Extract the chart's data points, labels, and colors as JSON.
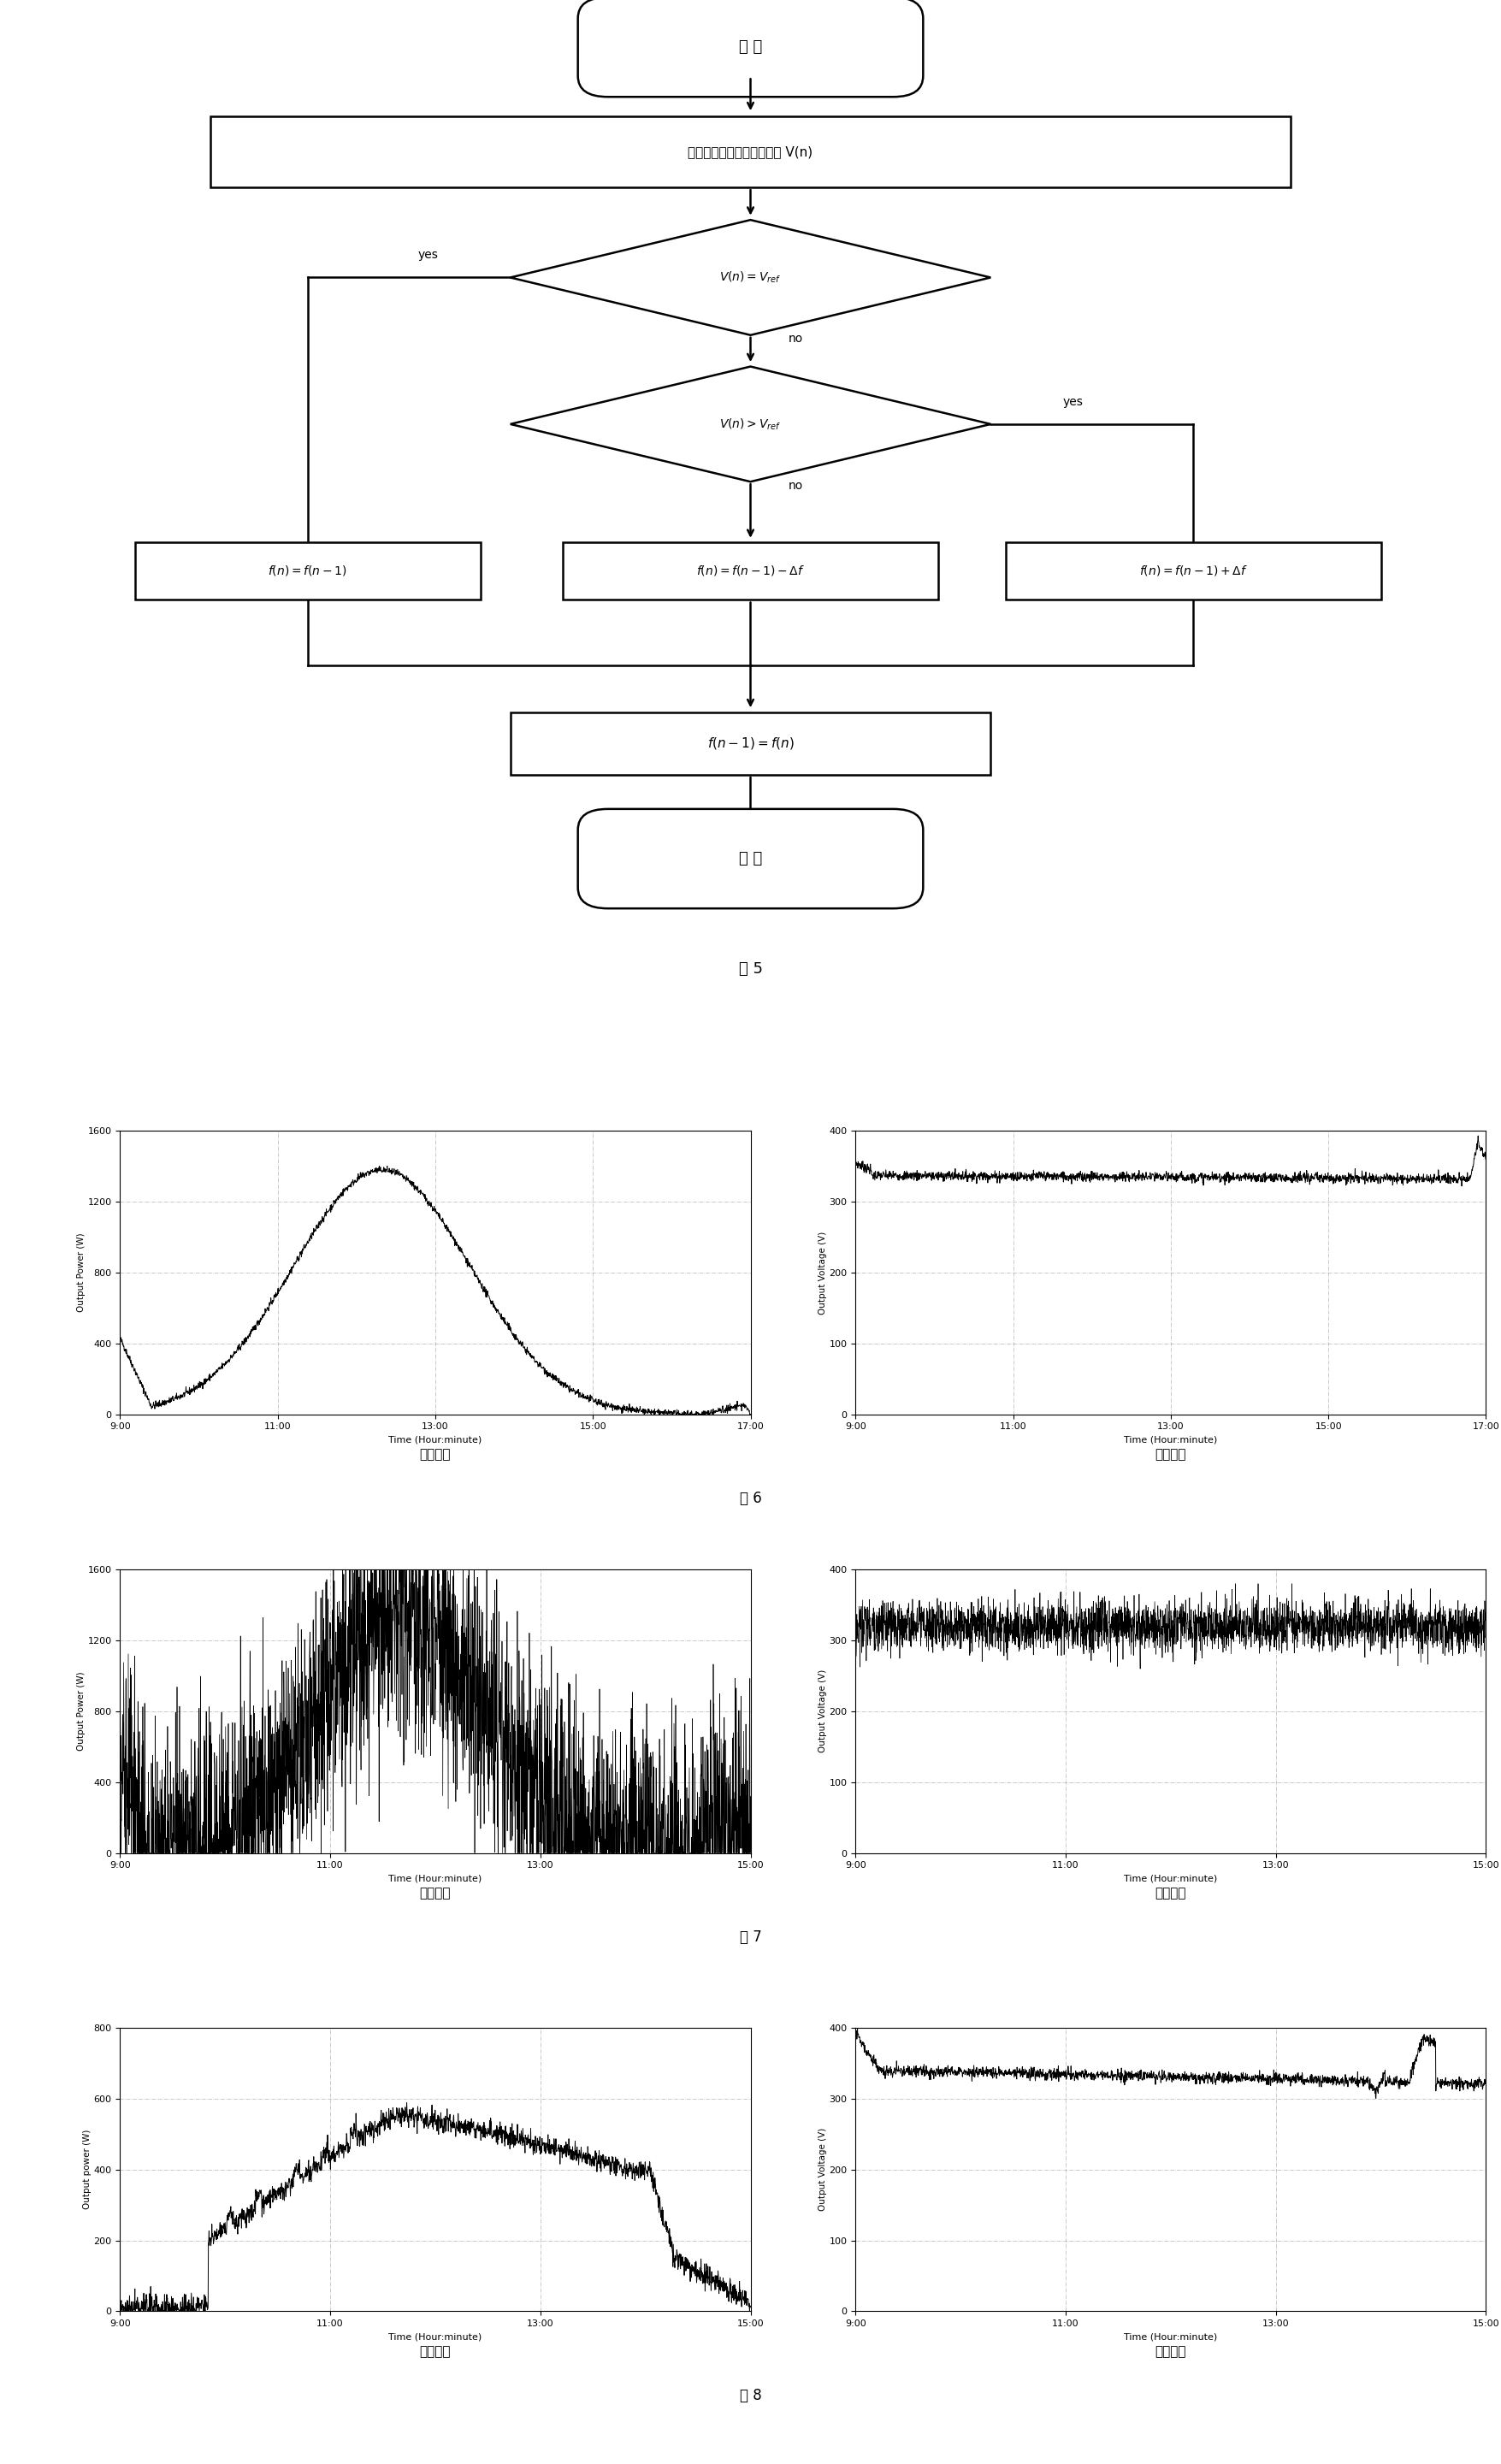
{
  "flowchart": {
    "start_text": "开 始",
    "box1_text": "检测光伏电池阵列输出电压 V(n)",
    "diamond1_label": "$V(n)=V_{ref}$",
    "diamond1_yes": "yes",
    "diamond1_no": "no",
    "diamond2_label": "$V(n)>V_{ref}$",
    "diamond2_yes": "yes",
    "diamond2_no": "no",
    "box_left_text": "$f(n) = f(n-1)$",
    "box_mid_text": "$f(n) = f(n-1)-\\Delta f$",
    "box_right_text": "$f(n) = f(n-1)+\\Delta f$",
    "box_final_text": "$f(n-1) = f(n)$",
    "end_text": "结 束",
    "fig_label": "图 5"
  },
  "fig6": {
    "left_ylabel": "Output Power (W)",
    "left_xlabel": "Time (Hour:minute)",
    "left_title": "输出功率",
    "left_ylim": [
      0,
      1600
    ],
    "left_yticks": [
      0,
      400,
      800,
      1200,
      1600
    ],
    "left_xticks": [
      "9:00",
      "11:00",
      "13:00",
      "15:00",
      "17:00"
    ],
    "right_ylabel": "Output Voltage (V)",
    "right_xlabel": "Time (Hour:minute)",
    "right_title": "输出电压",
    "right_ylim": [
      0,
      400
    ],
    "right_yticks": [
      0,
      100,
      200,
      300,
      400
    ],
    "right_xticks": [
      "9:00",
      "11:00",
      "13:00",
      "15:00",
      "17:00"
    ],
    "fig_label": "图 6"
  },
  "fig7": {
    "left_ylabel": "Output Power (W)",
    "left_xlabel": "Time (Hour:minute)",
    "left_title": "输出功率",
    "left_ylim": [
      0,
      1600
    ],
    "left_yticks": [
      0,
      400,
      800,
      1200,
      1600
    ],
    "left_xticks": [
      "9:00",
      "11:00",
      "13:00",
      "15:00"
    ],
    "right_ylabel": "Output Voltage (V)",
    "right_xlabel": "Time (Hour:minute)",
    "right_title": "输出电压",
    "right_ylim": [
      0,
      400
    ],
    "right_yticks": [
      0,
      100,
      200,
      300,
      400
    ],
    "right_xticks": [
      "9:00",
      "11:00",
      "13:00",
      "15:00"
    ],
    "fig_label": "图 7"
  },
  "fig8": {
    "left_ylabel": "Output power (W)",
    "left_xlabel": "Time (Hour:minute)",
    "left_title": "输出功率",
    "left_ylim": [
      0,
      800
    ],
    "left_yticks": [
      0,
      200,
      400,
      600,
      800
    ],
    "left_xticks": [
      "9:00",
      "11:00",
      "13:00",
      "15:00"
    ],
    "right_ylabel": "Output Voltage (V)",
    "right_xlabel": "Time (Hour:minute)",
    "right_title": "输出电压",
    "right_ylim": [
      0,
      400
    ],
    "right_yticks": [
      0,
      100,
      200,
      300,
      400
    ],
    "right_xticks": [
      "9:00",
      "11:00",
      "13:00",
      "15:00"
    ],
    "fig_label": "图 8"
  }
}
